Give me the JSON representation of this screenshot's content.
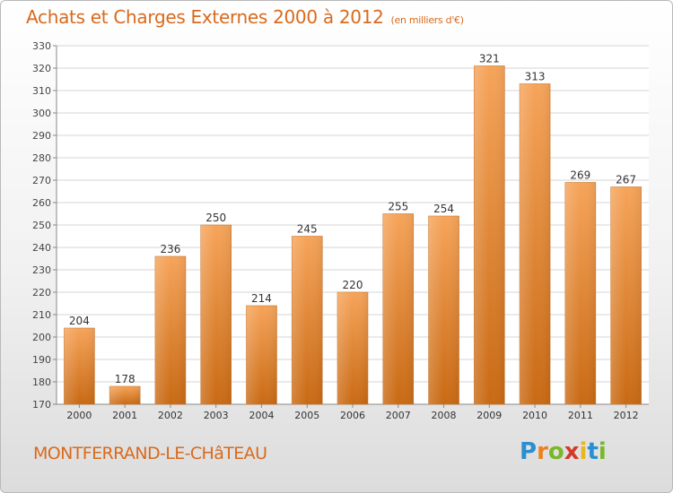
{
  "chart_data": {
    "type": "bar",
    "title": "Achats et Charges Externes 2000 à 2012",
    "unit_note": "(en milliers d'€)",
    "categories": [
      "2000",
      "2001",
      "2002",
      "2003",
      "2004",
      "2005",
      "2006",
      "2007",
      "2008",
      "2009",
      "2010",
      "2011",
      "2012"
    ],
    "values": [
      204,
      178,
      236,
      250,
      214,
      245,
      220,
      255,
      254,
      321,
      313,
      269,
      267
    ],
    "ylim": [
      170,
      330
    ],
    "yticks": [
      170,
      180,
      190,
      200,
      210,
      220,
      230,
      240,
      250,
      260,
      270,
      280,
      290,
      300,
      310,
      320,
      330
    ],
    "grid": true,
    "bar_color": "#f0923e"
  },
  "footer": {
    "commune": "MONTFERRAND-LE-CHâTEAU",
    "logo_letters": [
      {
        "ch": "P",
        "color": "#2a8fd0"
      },
      {
        "ch": "r",
        "color": "#e8831f"
      },
      {
        "ch": "o",
        "color": "#79b829"
      },
      {
        "ch": "x",
        "color": "#d43a2a"
      },
      {
        "ch": "i",
        "color": "#e8b61f"
      },
      {
        "ch": "t",
        "color": "#2a8fd0"
      },
      {
        "ch": "i",
        "color": "#79b829"
      }
    ]
  }
}
